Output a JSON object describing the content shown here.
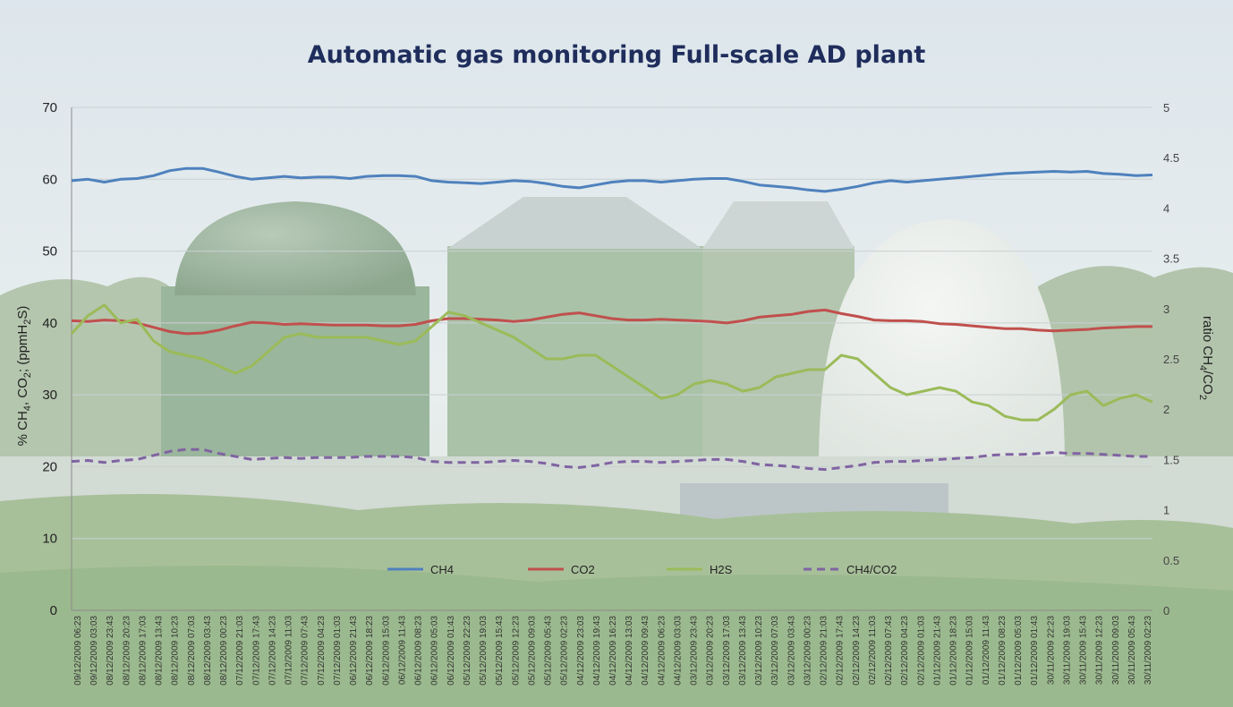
{
  "chart_data": {
    "type": "line",
    "title": "Automatic gas monitoring Full-scale AD plant",
    "xlabel": "",
    "ylabel_left": "% CH4, CO2; (ppmH2S)",
    "ylabel_right": "ratio CH4/CO2",
    "ylim_left": [
      0,
      70
    ],
    "ylim_right": [
      0,
      5
    ],
    "yticks_left": [
      "0",
      "10",
      "20",
      "30",
      "40",
      "50",
      "60",
      "70"
    ],
    "yticks_right": [
      "0",
      "0.5",
      "1",
      "1.5",
      "2",
      "2.5",
      "3",
      "3.5",
      "4",
      "4.5",
      "5"
    ],
    "grid": "horizontal",
    "legend_position": "bottom-center",
    "x_labels": [
      "09/12/2009 06:23",
      "09/12/2009 03:03",
      "08/12/2009 23:43",
      "08/12/2009 20:23",
      "08/12/2009 17:03",
      "08/12/2009 13:43",
      "08/12/2009 10:23",
      "08/12/2009 07:03",
      "08/12/2009 03:43",
      "08/12/2009 00:23",
      "07/12/2009 21:03",
      "07/12/2009 17:43",
      "07/12/2009 14:23",
      "07/12/2009 11:03",
      "07/12/2009 07:43",
      "07/12/2009 04:23",
      "07/12/2009 01:03",
      "06/12/2009 21:43",
      "06/12/2009 18:23",
      "06/12/2009 15:03",
      "06/12/2009 11:43",
      "06/12/2009 08:23",
      "06/12/2009 05:03",
      "06/12/2009 01:43",
      "05/12/2009 22:23",
      "05/12/2009 19:03",
      "05/12/2009 15:43",
      "05/12/2009 12:23",
      "05/12/2009 09:03",
      "05/12/2009 05:43",
      "05/12/2009 02:23",
      "04/12/2009 23:03",
      "04/12/2009 19:43",
      "04/12/2009 16:23",
      "04/12/2009 13:03",
      "04/12/2009 09:43",
      "04/12/2009 06:23",
      "04/12/2009 03:03",
      "03/12/2009 23:43",
      "03/12/2009 20:23",
      "03/12/2009 17:03",
      "03/12/2009 13:43",
      "03/12/2009 10:23",
      "03/12/2009 07:03",
      "03/12/2009 03:43",
      "03/12/2009 00:23",
      "02/12/2009 21:03",
      "02/12/2009 17:43",
      "02/12/2009 14:23",
      "02/12/2009 11:03",
      "02/12/2009 07:43",
      "02/12/2009 04:23",
      "02/12/2009 01:03",
      "01/12/2009 21:43",
      "01/12/2009 18:23",
      "01/12/2009 15:03",
      "01/12/2009 11:43",
      "01/12/2009 08:23",
      "01/12/2009 05:03",
      "01/12/2009 01:43",
      "30/11/2009 22:23",
      "30/11/2009 19:03",
      "30/11/2009 15:43",
      "30/11/2009 12:23",
      "30/11/2009 09:03",
      "30/11/2009 05:43",
      "30/11/2009 02:23"
    ],
    "series": [
      {
        "name": "CH4",
        "axis": "left",
        "color": "#4f81bd",
        "dash": false,
        "values": [
          59.8,
          60.0,
          59.6,
          60.0,
          60.1,
          60.5,
          61.2,
          61.5,
          61.5,
          61.0,
          60.4,
          60.0,
          60.2,
          60.4,
          60.2,
          60.3,
          60.3,
          60.1,
          60.4,
          60.5,
          60.5,
          60.4,
          59.8,
          59.6,
          59.5,
          59.4,
          59.6,
          59.8,
          59.7,
          59.4,
          59.0,
          58.8,
          59.2,
          59.6,
          59.8,
          59.8,
          59.6,
          59.8,
          60.0,
          60.1,
          60.1,
          59.7,
          59.2,
          59.0,
          58.8,
          58.5,
          58.3,
          58.6,
          59.0,
          59.5,
          59.8,
          59.6,
          59.8,
          60.0,
          60.2,
          60.4,
          60.6,
          60.8,
          60.9,
          61.0,
          61.1,
          61.0,
          61.1,
          60.8,
          60.7,
          60.5,
          60.6
        ]
      },
      {
        "name": "CO2",
        "axis": "left",
        "color": "#c0504d",
        "dash": false,
        "values": [
          40.3,
          40.2,
          40.4,
          40.3,
          40.0,
          39.4,
          38.8,
          38.5,
          38.6,
          39.0,
          39.6,
          40.1,
          40.0,
          39.8,
          39.9,
          39.8,
          39.7,
          39.7,
          39.7,
          39.6,
          39.6,
          39.8,
          40.3,
          40.6,
          40.6,
          40.5,
          40.4,
          40.2,
          40.4,
          40.8,
          41.2,
          41.4,
          41.0,
          40.6,
          40.4,
          40.4,
          40.5,
          40.4,
          40.3,
          40.2,
          40.0,
          40.3,
          40.8,
          41.0,
          41.2,
          41.6,
          41.8,
          41.3,
          40.9,
          40.4,
          40.3,
          40.3,
          40.2,
          39.9,
          39.8,
          39.6,
          39.4,
          39.2,
          39.2,
          39.0,
          38.9,
          39.0,
          39.1,
          39.3,
          39.4,
          39.5,
          39.5
        ]
      },
      {
        "name": "H2S",
        "axis": "left",
        "color": "#9bbb59",
        "dash": false,
        "values": [
          38.5,
          41.0,
          42.5,
          40.0,
          40.5,
          37.5,
          36.0,
          35.5,
          35.0,
          34.0,
          33.0,
          34.0,
          36.0,
          38.0,
          38.5,
          38.0,
          38.0,
          38.0,
          38.0,
          37.5,
          37.0,
          37.5,
          39.5,
          41.5,
          41.0,
          40.0,
          39.0,
          38.0,
          36.5,
          35.0,
          35.0,
          35.5,
          35.5,
          34.0,
          32.5,
          31.0,
          29.5,
          30.0,
          31.5,
          32.0,
          31.5,
          30.5,
          31.0,
          32.5,
          33.0,
          33.5,
          33.5,
          35.5,
          35.0,
          33.0,
          31.0,
          30.0,
          30.5,
          31.0,
          30.5,
          29.0,
          28.5,
          27.0,
          26.5,
          26.5,
          28.0,
          30.0,
          30.5,
          28.5,
          29.5,
          30.0,
          29.0
        ]
      },
      {
        "name": "CH4/CO2",
        "axis": "right",
        "color": "#8064a2",
        "dash": true,
        "values": [
          1.48,
          1.49,
          1.47,
          1.49,
          1.5,
          1.54,
          1.58,
          1.6,
          1.6,
          1.56,
          1.53,
          1.5,
          1.51,
          1.52,
          1.51,
          1.52,
          1.52,
          1.52,
          1.53,
          1.53,
          1.53,
          1.52,
          1.48,
          1.47,
          1.47,
          1.47,
          1.48,
          1.49,
          1.48,
          1.46,
          1.43,
          1.42,
          1.44,
          1.47,
          1.48,
          1.48,
          1.47,
          1.48,
          1.49,
          1.5,
          1.5,
          1.48,
          1.45,
          1.44,
          1.43,
          1.41,
          1.4,
          1.42,
          1.44,
          1.47,
          1.48,
          1.48,
          1.49,
          1.5,
          1.51,
          1.52,
          1.54,
          1.55,
          1.55,
          1.56,
          1.57,
          1.56,
          1.56,
          1.55,
          1.54,
          1.53,
          1.53
        ]
      }
    ]
  }
}
